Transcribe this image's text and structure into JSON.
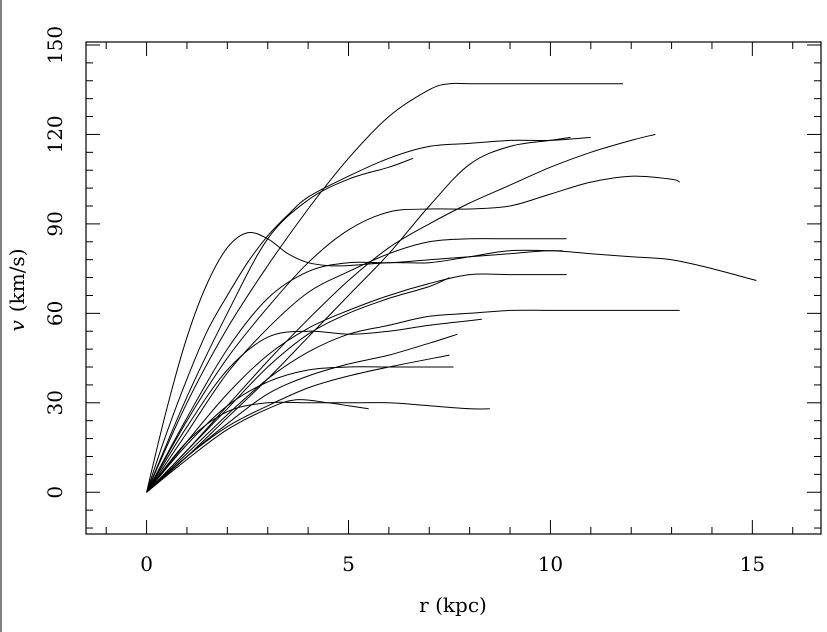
{
  "chart_data": {
    "type": "line",
    "title": "",
    "xlabel": "r (kpc)",
    "ylabel_symbol": "v",
    "ylabel_unit": "(km/s)",
    "xlim": [
      -1.5,
      16.7
    ],
    "ylim": [
      -14,
      151
    ],
    "x_ticks": [
      0,
      5,
      10,
      15
    ],
    "y_ticks": [
      0,
      30,
      60,
      90,
      120,
      150
    ],
    "x_tick_labels": [
      "0",
      "5",
      "10",
      "15"
    ],
    "y_tick_labels": [
      "0",
      "30",
      "60",
      "90",
      "120",
      "150"
    ],
    "grid": false,
    "series": [
      {
        "x": [
          0,
          1,
          2,
          3,
          4,
          5,
          6,
          7,
          7.5,
          8,
          9,
          10,
          11,
          11.8
        ],
        "values": [
          0,
          30,
          55,
          76,
          95,
          112,
          126,
          135,
          137,
          137,
          137,
          137,
          137,
          137
        ]
      },
      {
        "x": [
          0,
          0.5,
          1,
          1.5,
          2,
          2.5,
          3,
          3.5,
          4,
          5,
          6,
          7,
          8,
          9,
          10,
          11
        ],
        "values": [
          0,
          20,
          38,
          54,
          66,
          77,
          86,
          93,
          99,
          106,
          112,
          116,
          117,
          118,
          118,
          119
        ]
      },
      {
        "x": [
          0,
          1,
          2,
          3,
          4,
          5,
          6,
          6.6
        ],
        "values": [
          0,
          32,
          60,
          85,
          98,
          105,
          109,
          112
        ]
      },
      {
        "x": [
          0,
          0.5,
          1,
          1.5,
          2,
          2.5,
          3,
          3.5,
          4,
          4.5,
          5,
          6,
          7,
          8,
          9,
          10,
          10.3
        ],
        "values": [
          0,
          28,
          52,
          70,
          82,
          87,
          85,
          80,
          77,
          76,
          76,
          77,
          77,
          79,
          81,
          81,
          81
        ]
      },
      {
        "x": [
          0,
          1,
          2,
          3,
          4,
          5,
          6,
          7,
          8,
          9,
          10,
          11,
          12,
          13,
          14,
          15.1
        ],
        "values": [
          0,
          25,
          48,
          65,
          74,
          77,
          77,
          78,
          79,
          80,
          81,
          80,
          79,
          78,
          75,
          71
        ]
      },
      {
        "x": [
          0,
          1,
          2,
          3,
          4,
          5,
          6,
          7,
          8,
          9,
          10,
          11,
          12,
          12.6
        ],
        "values": [
          0,
          14,
          29,
          44,
          58,
          71,
          82,
          90,
          97,
          103,
          109,
          114,
          118,
          120
        ]
      },
      {
        "x": [
          0,
          1,
          2,
          3,
          4,
          5,
          6,
          7,
          8,
          9,
          10,
          11,
          12,
          13,
          13.2
        ],
        "values": [
          0,
          24,
          45,
          62,
          77,
          88,
          94,
          95,
          95,
          96,
          100,
          104,
          106,
          105,
          104
        ]
      },
      {
        "x": [
          0,
          1,
          2,
          3,
          4,
          5,
          6,
          7,
          8,
          9,
          10,
          10.5
        ],
        "values": [
          0,
          12,
          25,
          38,
          52,
          66,
          80,
          96,
          110,
          116,
          118,
          119
        ]
      },
      {
        "x": [
          0,
          1,
          2,
          3,
          4,
          5,
          6,
          7,
          8,
          9,
          10,
          10.4
        ],
        "values": [
          0,
          20,
          40,
          55,
          67,
          74,
          80,
          84,
          85,
          85,
          85,
          85
        ]
      },
      {
        "x": [
          0,
          1,
          2,
          3,
          4,
          5,
          6,
          7,
          8,
          9,
          10,
          10.4
        ],
        "values": [
          0,
          17,
          33,
          46,
          55,
          61,
          66,
          70,
          73,
          73,
          73,
          73
        ]
      },
      {
        "x": [
          0,
          1,
          2,
          3,
          4,
          5,
          6,
          7,
          7.5
        ],
        "values": [
          0,
          14,
          28,
          42,
          53,
          60,
          65,
          69,
          72
        ]
      },
      {
        "x": [
          0,
          1,
          2,
          3,
          4,
          5,
          6,
          7,
          8,
          9,
          10,
          11,
          12,
          13.2
        ],
        "values": [
          0,
          13,
          26,
          38,
          47,
          53,
          56,
          59,
          60,
          61,
          61,
          61,
          61,
          61
        ]
      },
      {
        "x": [
          0,
          1,
          2,
          3,
          4,
          5,
          6,
          7,
          8.3
        ],
        "values": [
          0,
          22,
          41,
          52,
          54,
          53,
          54,
          56,
          58
        ]
      },
      {
        "x": [
          0,
          1,
          2,
          3,
          4,
          5,
          6,
          7,
          7.7
        ],
        "values": [
          0,
          12,
          23,
          33,
          39,
          43,
          46,
          50,
          53
        ]
      },
      {
        "x": [
          0,
          1,
          2,
          3,
          4,
          5,
          6,
          7,
          7.6
        ],
        "values": [
          0,
          16,
          29,
          37,
          41,
          42,
          42,
          42,
          42
        ]
      },
      {
        "x": [
          0,
          1,
          2,
          3,
          4,
          5,
          6,
          7,
          8,
          8.5
        ],
        "values": [
          0,
          17,
          27,
          30,
          30,
          30,
          30,
          29,
          28,
          28
        ]
      },
      {
        "x": [
          0,
          1,
          2,
          3,
          3.7,
          4.5,
          5,
          5.5
        ],
        "values": [
          0,
          11,
          21,
          28,
          31,
          30,
          29,
          28
        ]
      },
      {
        "x": [
          0,
          1,
          2,
          3,
          4,
          5,
          6,
          7.5
        ],
        "values": [
          0,
          12,
          22,
          29,
          35,
          39,
          42,
          46
        ]
      }
    ]
  }
}
